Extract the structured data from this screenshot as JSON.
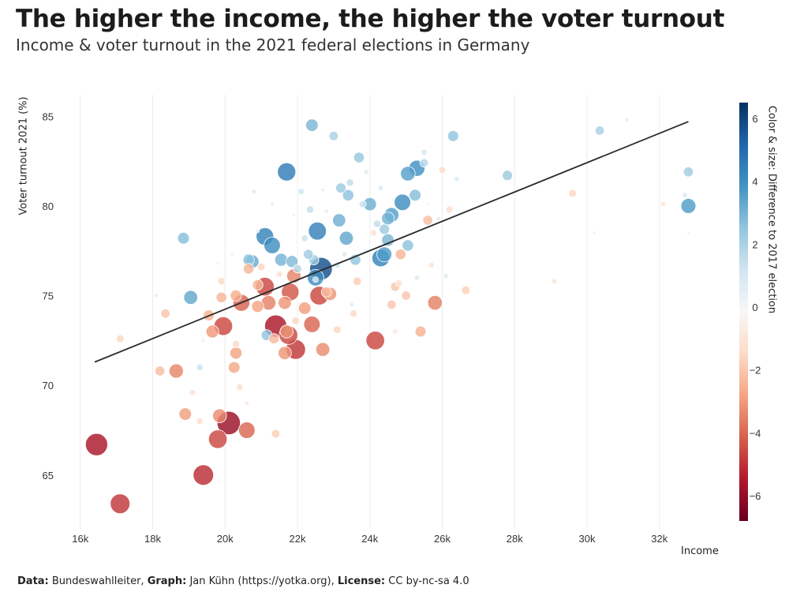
{
  "title": "The higher the income, the higher the voter turnout",
  "subtitle": "Income & voter turnout in the 2021 federal elections in Germany",
  "footer": {
    "data_label": "Data:",
    "data_value": "Bundeswahlleiter,",
    "graph_label": "Graph:",
    "graph_value": "Jan Kühn (https://yotka.org),",
    "license_label": "License:",
    "license_value": "CC by-nc-sa 4.0"
  },
  "chart_data": {
    "type": "scatter",
    "title": "The higher the income, the higher the voter turnout",
    "subtitle": "Income & voter turnout in the 2021 federal elections in Germany",
    "xlabel": "Income",
    "ylabel": "Voter turnout 2021 (%)",
    "colorbar_label": "Color & size: Difference to 2017 election",
    "xlim": [
      15700,
      33400
    ],
    "ylim": [
      62,
      86.2
    ],
    "xticks": [
      16000,
      18000,
      20000,
      22000,
      24000,
      26000,
      28000,
      30000,
      32000
    ],
    "xtick_labels": [
      "16k",
      "18k",
      "20k",
      "22k",
      "24k",
      "26k",
      "28k",
      "30k",
      "32k"
    ],
    "yticks": [
      65,
      70,
      75,
      80,
      85
    ],
    "ytick_labels": [
      "65",
      "70",
      "75",
      "80",
      "85"
    ],
    "colorbar_ticks": [
      6,
      4,
      2,
      0,
      -2,
      -4,
      -6
    ],
    "colorbar_tick_labels": [
      "6",
      "4",
      "2",
      "0",
      "−2",
      "−4",
      "−6"
    ],
    "colorbar_range": [
      -6.8,
      6.5
    ],
    "colormap": [
      "#67001f",
      "#b2182b",
      "#d6604d",
      "#f4a582",
      "#fddbc7",
      "#f7f7f7",
      "#d1e5f0",
      "#92c5de",
      "#4393c3",
      "#2166ac",
      "#053061"
    ],
    "trendline": {
      "x": [
        16400,
        32800
      ],
      "y": [
        71.3,
        84.7
      ]
    },
    "trendline_color": "#2b2b2b",
    "grid": "vertical",
    "points": [
      [
        16450,
        66.7,
        -5.6
      ],
      [
        17100,
        63.4,
        -4.9
      ],
      [
        19400,
        65.0,
        -5.1
      ],
      [
        20100,
        67.9,
        -5.9
      ],
      [
        19800,
        67.0,
        -4.6
      ],
      [
        20600,
        67.5,
        -4.0
      ],
      [
        19850,
        68.3,
        -3.3
      ],
      [
        18900,
        68.4,
        -2.9
      ],
      [
        18650,
        70.8,
        -3.4
      ],
      [
        18200,
        70.8,
        -2.2
      ],
      [
        20250,
        71.0,
        -2.7
      ],
      [
        19950,
        73.3,
        -4.6
      ],
      [
        20300,
        71.8,
        -2.8
      ],
      [
        20450,
        74.6,
        -4.1
      ],
      [
        20900,
        75.6,
        -2.4
      ],
      [
        19050,
        74.9,
        3.3
      ],
      [
        18850,
        78.2,
        2.7
      ],
      [
        19550,
        73.9,
        -2.5
      ],
      [
        19650,
        73.0,
        -3.0
      ],
      [
        19900,
        74.9,
        -2.4
      ],
      [
        21100,
        78.3,
        4.3
      ],
      [
        21300,
        77.8,
        4.0
      ],
      [
        20750,
        76.9,
        3.2
      ],
      [
        21100,
        75.5,
        -4.6
      ],
      [
        21400,
        73.3,
        -5.6
      ],
      [
        21750,
        72.8,
        -4.6
      ],
      [
        21950,
        72.0,
        -4.9
      ],
      [
        21700,
        81.9,
        4.5
      ],
      [
        21550,
        77.0,
        3.0
      ],
      [
        21850,
        76.9,
        2.8
      ],
      [
        22400,
        84.5,
        2.9
      ],
      [
        22550,
        78.6,
        4.4
      ],
      [
        22650,
        76.5,
        5.7
      ],
      [
        22500,
        76.0,
        4.0
      ],
      [
        22600,
        75.0,
        -4.6
      ],
      [
        22400,
        73.4,
        -4.0
      ],
      [
        22700,
        72.0,
        -3.3
      ],
      [
        21800,
        75.2,
        -4.3
      ],
      [
        21900,
        76.1,
        -3.4
      ],
      [
        21650,
        74.6,
        -3.1
      ],
      [
        22200,
        74.3,
        -2.9
      ],
      [
        21200,
        74.6,
        -3.5
      ],
      [
        21700,
        73.0,
        -3.1
      ],
      [
        21650,
        71.8,
        -3.1
      ],
      [
        21350,
        72.6,
        -2.3
      ],
      [
        21150,
        72.8,
        2.5
      ],
      [
        20650,
        77.0,
        2.6
      ],
      [
        20650,
        76.5,
        -2.4
      ],
      [
        20300,
        75.0,
        -2.6
      ],
      [
        20900,
        74.4,
        -2.8
      ],
      [
        22900,
        75.1,
        -3.1
      ],
      [
        22800,
        75.2,
        -2.3
      ],
      [
        23150,
        79.2,
        3.1
      ],
      [
        23350,
        78.2,
        3.3
      ],
      [
        23400,
        80.6,
        2.6
      ],
      [
        23200,
        81.0,
        2.3
      ],
      [
        23000,
        83.9,
        2.0
      ],
      [
        23700,
        82.7,
        2.4
      ],
      [
        23600,
        77.0,
        2.5
      ],
      [
        24000,
        80.1,
        3.1
      ],
      [
        24300,
        77.1,
        4.3
      ],
      [
        24400,
        77.3,
        3.6
      ],
      [
        24500,
        78.1,
        2.9
      ],
      [
        24400,
        78.7,
        2.3
      ],
      [
        24500,
        79.3,
        3.0
      ],
      [
        24600,
        79.5,
        3.5
      ],
      [
        24900,
        80.2,
        4.0
      ],
      [
        25050,
        81.8,
        3.5
      ],
      [
        25300,
        82.1,
        3.9
      ],
      [
        25250,
        80.6,
        2.7
      ],
      [
        25050,
        77.8,
        2.6
      ],
      [
        24850,
        77.3,
        -2.4
      ],
      [
        24150,
        72.5,
        -4.6
      ],
      [
        25000,
        75.0,
        -2.0
      ],
      [
        25400,
        73.0,
        -2.5
      ],
      [
        25800,
        74.6,
        -3.5
      ],
      [
        25600,
        79.2,
        -2.2
      ],
      [
        26300,
        83.9,
        2.5
      ],
      [
        27800,
        81.7,
        2.3
      ],
      [
        30350,
        84.2,
        2.0
      ],
      [
        32800,
        80.0,
        3.6
      ],
      [
        32800,
        81.9,
        2.2
      ],
      [
        29600,
        80.7,
        -1.6
      ],
      [
        26650,
        75.3,
        -1.8
      ],
      [
        24700,
        75.5,
        -2.0
      ],
      [
        24600,
        74.5,
        -2.0
      ],
      [
        23550,
        74.0,
        -1.5
      ],
      [
        23650,
        75.8,
        -1.8
      ],
      [
        22000,
        76.5,
        1.8
      ],
      [
        22300,
        77.3,
        2.2
      ],
      [
        22450,
        77.0,
        2.3
      ],
      [
        22350,
        79.8,
        1.5
      ],
      [
        23800,
        80.1,
        1.4
      ],
      [
        23450,
        81.3,
        1.5
      ],
      [
        24200,
        79.0,
        1.5
      ],
      [
        21950,
        73.6,
        -1.6
      ],
      [
        21000,
        76.6,
        -1.6
      ],
      [
        20300,
        72.3,
        -1.5
      ],
      [
        19900,
        75.8,
        -1.5
      ],
      [
        23100,
        73.1,
        -1.6
      ],
      [
        25500,
        82.4,
        1.8
      ],
      [
        26000,
        82.0,
        -1.4
      ],
      [
        26200,
        79.8,
        -1.4
      ],
      [
        24100,
        78.5,
        -1.3
      ],
      [
        18350,
        74.0,
        -2.0
      ],
      [
        17100,
        72.6,
        -1.6
      ],
      [
        19300,
        68.0,
        -1.3
      ],
      [
        20400,
        69.9,
        -1.3
      ],
      [
        21400,
        67.3,
        -1.8
      ],
      [
        19300,
        71.0,
        1.3
      ],
      [
        19100,
        69.6,
        -1.2
      ],
      [
        22100,
        80.8,
        1.2
      ],
      [
        22200,
        78.2,
        1.3
      ],
      [
        23100,
        76.7,
        1.2
      ],
      [
        24800,
        75.7,
        -1.3
      ],
      [
        25700,
        76.7,
        -1.1
      ],
      [
        20600,
        69.0,
        -0.8
      ],
      [
        20800,
        80.8,
        0.8
      ],
      [
        31100,
        84.8,
        0.6
      ],
      [
        32700,
        80.6,
        0.9
      ],
      [
        32100,
        80.1,
        -1.0
      ],
      [
        29100,
        75.8,
        -1.0
      ],
      [
        26400,
        81.5,
        0.9
      ],
      [
        25500,
        83.0,
        1.1
      ],
      [
        18100,
        75.0,
        0.6
      ],
      [
        19400,
        72.5,
        -0.6
      ],
      [
        23300,
        77.3,
        0.9
      ],
      [
        24700,
        73.0,
        -0.9
      ],
      [
        20200,
        77.3,
        -0.6
      ],
      [
        22800,
        79.7,
        0.7
      ],
      [
        23900,
        81.9,
        0.8
      ],
      [
        22500,
        75.9,
        1.0
      ],
      [
        25300,
        76.0,
        0.9
      ],
      [
        26100,
        76.1,
        0.8
      ],
      [
        21500,
        76.2,
        -1.2
      ],
      [
        21300,
        80.1,
        0.6
      ],
      [
        23500,
        74.5,
        0.7
      ],
      [
        24900,
        78.2,
        -0.8
      ],
      [
        25900,
        79.3,
        0.7
      ],
      [
        24300,
        81.0,
        0.9
      ],
      [
        20900,
        78.6,
        0.4
      ],
      [
        22700,
        80.9,
        0.5
      ],
      [
        19800,
        76.8,
        0.4
      ],
      [
        30200,
        78.5,
        0.4
      ],
      [
        32800,
        78.5,
        0.3
      ],
      [
        25600,
        80.1,
        -0.4
      ],
      [
        23900,
        77.5,
        0.5
      ],
      [
        21900,
        79.5,
        0.4
      ]
    ]
  }
}
